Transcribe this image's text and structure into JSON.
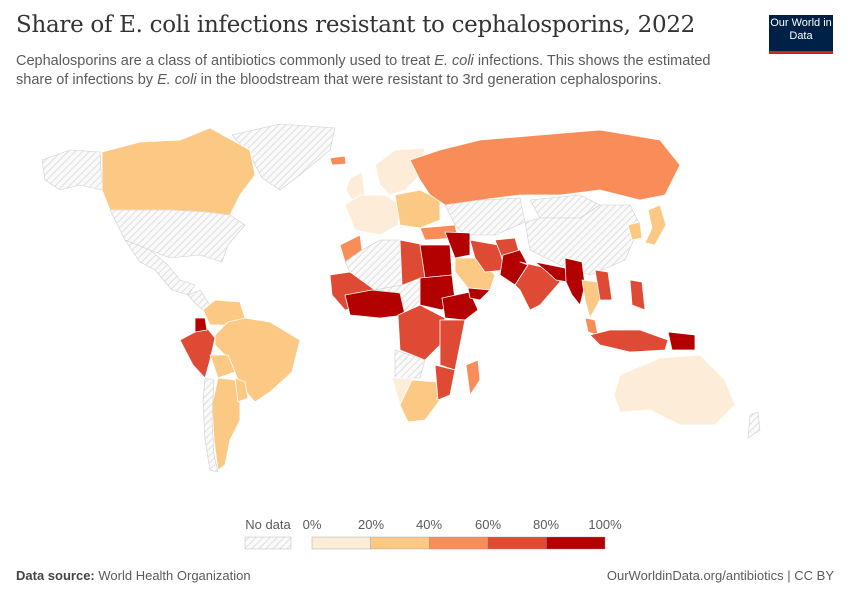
{
  "header": {
    "title": "Share of E. coli infections resistant to cephalosporins, 2022",
    "subtitle_parts": [
      "Cephalosporins are a class of antibiotics commonly used to treat ",
      "E. coli",
      " infections. This shows the estimated share of infections by ",
      "E. coli",
      " in the bloodstream that were resistant to 3rd generation cephalosporins."
    ],
    "logo": "Our World in Data"
  },
  "legend": {
    "no_data_label": "No data",
    "ticks": [
      "0%",
      "20%",
      "40%",
      "60%",
      "80%",
      "100%"
    ],
    "bins": [
      {
        "range": "0–20%",
        "color": "#fdedd8"
      },
      {
        "range": "20–40%",
        "color": "#fcc985"
      },
      {
        "range": "40–60%",
        "color": "#f98d59"
      },
      {
        "range": "60–80%",
        "color": "#df4a34"
      },
      {
        "range": "80–100%",
        "color": "#b30000"
      }
    ],
    "no_data_color": "#e8e8e8"
  },
  "map": {
    "regions": {
      "greenland": -1,
      "alaska": -1,
      "canada": 1,
      "usa": -1,
      "mexico": -1,
      "central-america": -1,
      "colombia-venezuela": 1,
      "peru": 3,
      "ecuador": 4,
      "brazil": 1,
      "bolivia": 1,
      "argentina": 1,
      "chile": -1,
      "paraguay-uruguay": 1,
      "iceland": 2,
      "uk-ireland": 0,
      "scandinavia": 0,
      "western-europe": 0,
      "eastern-europe": 1,
      "turkey": 2,
      "russia": 2,
      "kazakhstan-central-asia": -1,
      "mongolia": -1,
      "china": -1,
      "japan": 1,
      "korea": 1,
      "morocco": 2,
      "algeria": -1,
      "libya": 3,
      "egypt": 4,
      "west-africa": 3,
      "nigeria-ghana": 4,
      "sahel": -1,
      "sudan": 4,
      "ethiopia": 4,
      "central-africa": 3,
      "east-africa": 3,
      "angola": -1,
      "namibia": 0,
      "south-africa": 1,
      "mozambique": 3,
      "madagascar": 2,
      "iraq-syria": 4,
      "saudi-arabia": 1,
      "iran": 3,
      "yemen": 4,
      "afghanistan": 3,
      "pakistan": 4,
      "india": 3,
      "nepal-bangladesh": 4,
      "myanmar": 4,
      "thailand": 1,
      "vietnam-laos": 3,
      "malaysia": 2,
      "indonesia": 3,
      "philippines": 3,
      "papua-new-guinea": 4,
      "australia": 0,
      "new-zealand": -1
    }
  },
  "footer": {
    "source_label": "Data source:",
    "source": "World Health Organization",
    "link": "OurWorldinData.org/antibiotics | CC BY"
  }
}
